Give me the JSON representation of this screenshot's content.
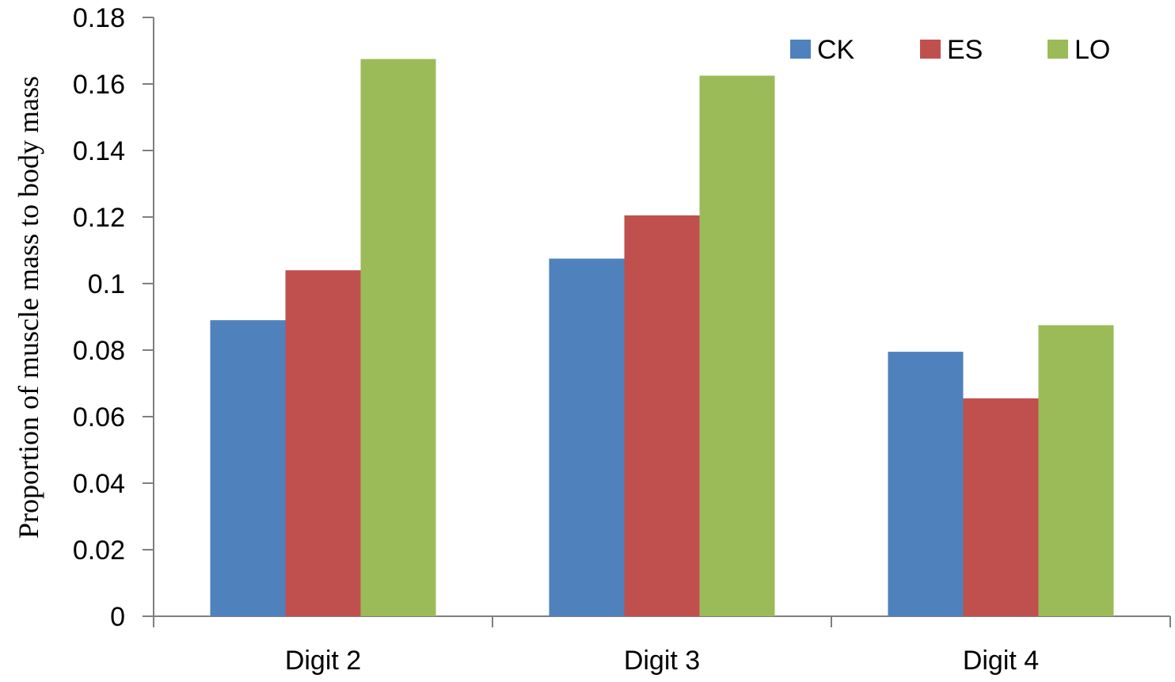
{
  "chart_data": {
    "type": "bar",
    "categories": [
      "Digit 2",
      "Digit 3",
      "Digit 4"
    ],
    "series": [
      {
        "name": "CK",
        "color": "#4f81bd",
        "values": [
          0.089,
          0.1075,
          0.0795
        ]
      },
      {
        "name": "ES",
        "color": "#c0504d",
        "values": [
          0.104,
          0.1205,
          0.0655
        ]
      },
      {
        "name": "LO",
        "color": "#9bbb59",
        "values": [
          0.1675,
          0.1625,
          0.0875
        ]
      }
    ],
    "title": "",
    "xlabel": "",
    "ylabel": "Proportion of muscle mass to body mass",
    "ylim": [
      0,
      0.18
    ],
    "yticks": [
      {
        "value": 0,
        "label": "0"
      },
      {
        "value": 0.02,
        "label": "0.02"
      },
      {
        "value": 0.04,
        "label": "0.04"
      },
      {
        "value": 0.06,
        "label": "0.06"
      },
      {
        "value": 0.08,
        "label": "0.08"
      },
      {
        "value": 0.1,
        "label": "0.1"
      },
      {
        "value": 0.12,
        "label": "0.12"
      },
      {
        "value": 0.14,
        "label": "0.14"
      },
      {
        "value": 0.16,
        "label": "0.16"
      },
      {
        "value": 0.18,
        "label": "0.18"
      }
    ],
    "grid": false,
    "legend": "top-right"
  }
}
